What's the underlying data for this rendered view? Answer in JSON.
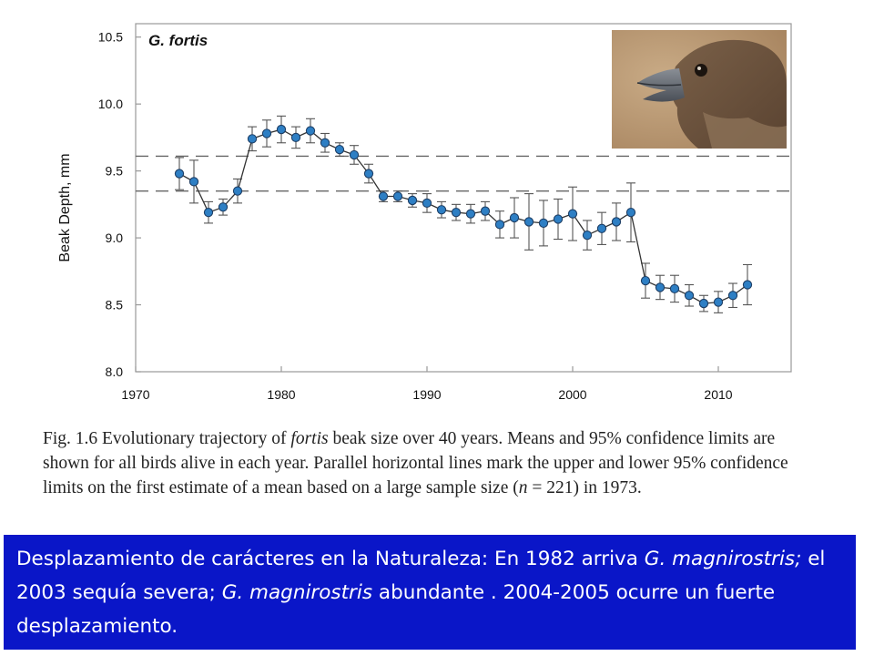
{
  "chart_data": {
    "type": "scatter",
    "title": "G. fortis",
    "xlabel": "",
    "ylabel": "Beak Depth, mm",
    "xlim": [
      1970,
      2015
    ],
    "ylim": [
      8.0,
      10.6
    ],
    "xticks": [
      1970,
      1980,
      1990,
      2000,
      2010
    ],
    "yticks": [
      8.0,
      8.5,
      9.0,
      9.5,
      10.0,
      10.5
    ],
    "xtick_labels": [
      "1970",
      "1980",
      "1990",
      "2000",
      "2010"
    ],
    "ytick_labels": [
      "8.0",
      "8.5",
      "9.0",
      "9.5",
      "10.0",
      "10.5"
    ],
    "reference_lines": [
      9.61,
      9.35
    ],
    "grid": false,
    "series": [
      {
        "color": "#2e7fc4",
        "x": [
          1973,
          1974,
          1975,
          1976,
          1977,
          1978,
          1979,
          1980,
          1981,
          1982,
          1983,
          1984,
          1985,
          1986,
          1987,
          1988,
          1989,
          1990,
          1991,
          1992,
          1993,
          1994,
          1995,
          1996,
          1997,
          1998,
          1999,
          2000,
          2001,
          2002,
          2003,
          2004,
          2005,
          2006,
          2007,
          2008,
          2009,
          2010,
          2011,
          2012
        ],
        "y": [
          9.48,
          9.42,
          9.19,
          9.23,
          9.35,
          9.74,
          9.78,
          9.81,
          9.75,
          9.8,
          9.71,
          9.66,
          9.62,
          9.48,
          9.31,
          9.31,
          9.28,
          9.26,
          9.21,
          9.19,
          9.18,
          9.2,
          9.1,
          9.15,
          9.12,
          9.11,
          9.14,
          9.18,
          9.02,
          9.07,
          9.12,
          9.19,
          8.68,
          8.63,
          8.62,
          8.57,
          8.51,
          8.52,
          8.57,
          8.65
        ],
        "err": [
          0.12,
          0.16,
          0.08,
          0.06,
          0.09,
          0.09,
          0.1,
          0.1,
          0.08,
          0.09,
          0.07,
          0.05,
          0.07,
          0.07,
          0.04,
          0.04,
          0.05,
          0.07,
          0.06,
          0.06,
          0.07,
          0.07,
          0.1,
          0.15,
          0.21,
          0.17,
          0.15,
          0.2,
          0.11,
          0.12,
          0.14,
          0.22,
          0.13,
          0.09,
          0.1,
          0.08,
          0.06,
          0.08,
          0.09,
          0.15
        ]
      }
    ]
  },
  "caption": {
    "fig_label": "Fig. 1.6",
    "text_1": " Evolutionary trajectory of ",
    "italic_1": "fortis",
    "text_2": " beak size over 40 years. Means and 95% confidence limits are shown for all birds alive in each year. Parallel horizontal lines mark the upper and lower 95% confidence limits on the first estimate of a mean based on a large sample size (",
    "italic_2": "n",
    "text_3": " = 221) in 1973."
  },
  "note": {
    "text_1": "Desplazamiento de carácteres en la Naturaleza: En 1982 arriva ",
    "italic_1": "G. magnirostris;",
    "text_2": " el 2003 sequía severa; ",
    "italic_2": "G. magnirostris",
    "text_3": " abundante . 2004-2005 ocurre un fuerte desplazamiento.",
    "background": "#0a16c8"
  }
}
